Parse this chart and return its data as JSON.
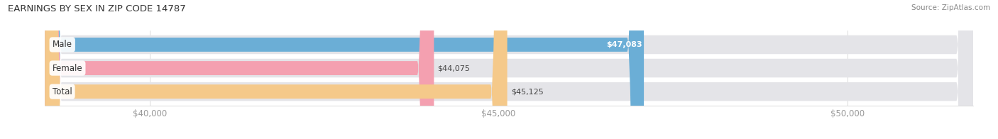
{
  "title": "EARNINGS BY SEX IN ZIP CODE 14787",
  "source": "Source: ZipAtlas.com",
  "categories": [
    "Male",
    "Female",
    "Total"
  ],
  "values": [
    47083,
    44075,
    45125
  ],
  "bar_colors": [
    "#6baed6",
    "#f4a0b0",
    "#f5c98a"
  ],
  "bar_bg_color": "#e4e4e8",
  "xmin": 38500,
  "xmax": 51800,
  "xticks": [
    40000,
    45000,
    50000
  ],
  "xtick_labels": [
    "$40,000",
    "$45,000",
    "$50,000"
  ],
  "value_labels": [
    "$47,083",
    "$44,075",
    "$45,125"
  ],
  "value_inside": [
    true,
    false,
    false
  ],
  "title_fontsize": 9.5,
  "source_fontsize": 7.5,
  "tick_fontsize": 8.5,
  "bar_label_fontsize": 8,
  "cat_fontsize": 8.5,
  "figsize": [
    14.06,
    1.96
  ],
  "dpi": 100
}
